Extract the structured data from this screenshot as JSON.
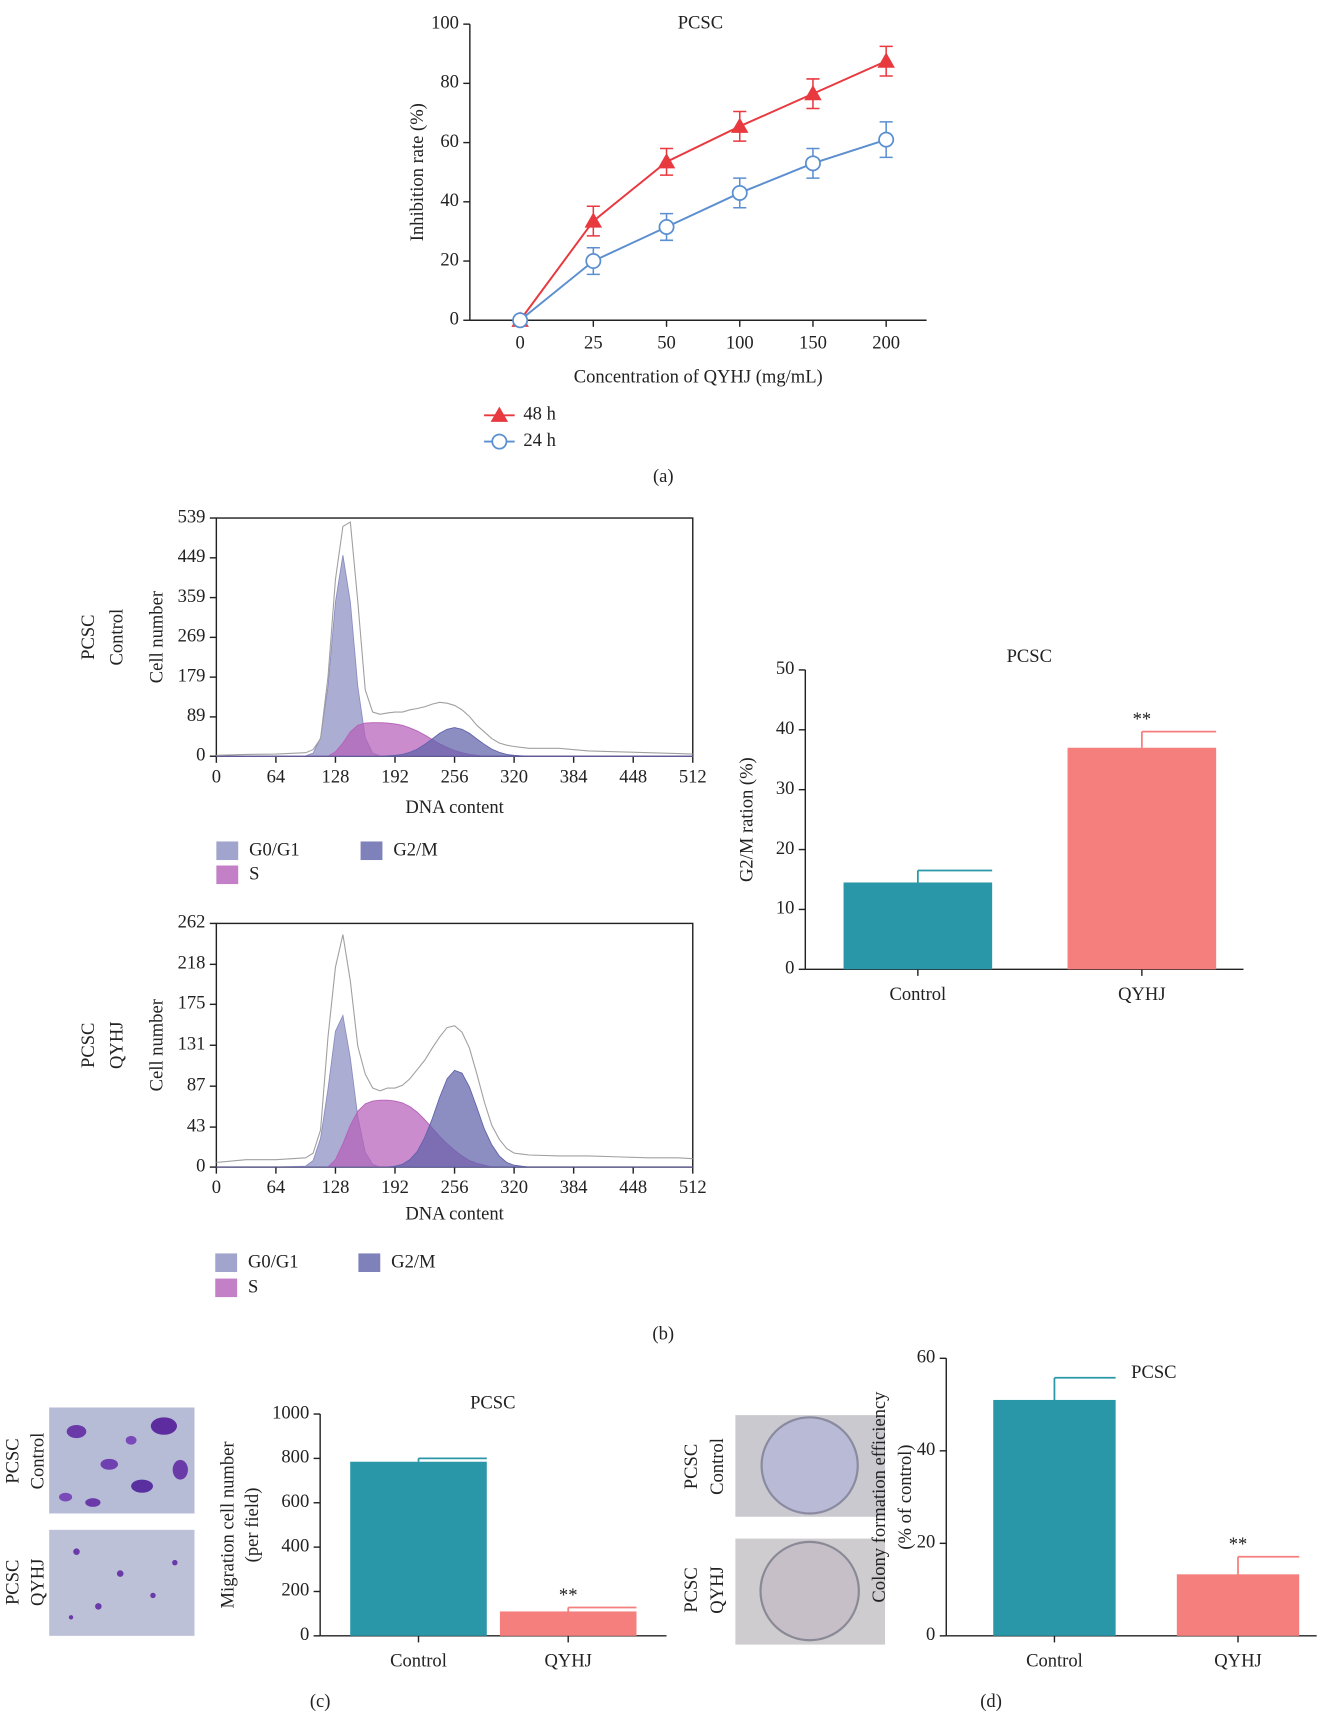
{
  "chart_data": [
    {
      "type": "line",
      "title": "PCSC",
      "x_label": "Concentration of QYHJ (mg/mL)",
      "y_label": "Inhibition rate (%)",
      "caption": "(a)",
      "categories": [
        "0",
        "25",
        "50",
        "100",
        "150",
        "200"
      ],
      "ylim": [
        0,
        100
      ],
      "yticks": [
        0,
        20,
        40,
        60,
        80,
        100
      ],
      "series": [
        {
          "name": "48 h",
          "color": "#e8393f",
          "marker": "triangle",
          "values": [
            0,
            33.5,
            53.5,
            65.5,
            76.5,
            87.5
          ],
          "errors": [
            0,
            5,
            4.5,
            5,
            5,
            5
          ]
        },
        {
          "name": "24 h",
          "color": "#5b8fd0",
          "marker": "open-circle",
          "values": [
            0,
            20,
            31.5,
            43,
            53,
            61
          ],
          "errors": [
            0,
            4.5,
            4.5,
            5,
            5,
            6
          ]
        }
      ]
    },
    {
      "type": "area",
      "side_label": [
        "PCSC",
        "Control"
      ],
      "x_label": "DNA content",
      "y_label": "Cell number",
      "xlim": [
        0,
        512
      ],
      "xticks": [
        0,
        64,
        128,
        192,
        256,
        320,
        384,
        448,
        512
      ],
      "ylim": [
        0,
        539
      ],
      "yticks": [
        0,
        89,
        179,
        269,
        359,
        449,
        539
      ],
      "x": [
        0,
        32,
        64,
        96,
        104,
        112,
        120,
        128,
        136,
        144,
        152,
        160,
        168,
        176,
        184,
        192,
        200,
        208,
        216,
        224,
        232,
        240,
        248,
        256,
        264,
        272,
        280,
        288,
        296,
        304,
        312,
        320,
        328,
        336,
        368,
        400,
        432,
        464,
        496,
        512
      ],
      "series": [
        {
          "name": "G0/G1",
          "color": "#8a8dc0",
          "values": [
            0,
            0,
            0,
            1,
            7,
            42,
            158,
            349,
            455,
            349,
            158,
            42,
            7,
            1,
            0,
            0,
            0,
            0,
            0,
            0,
            0,
            0,
            0,
            0,
            0,
            0,
            0,
            0,
            0,
            0,
            0,
            0,
            0,
            0,
            0,
            0,
            0,
            0,
            0,
            0
          ]
        },
        {
          "name": "S",
          "color": "#b560b8",
          "values": [
            0,
            0,
            0,
            0,
            0,
            0,
            0,
            10,
            30,
            55,
            70,
            75,
            76,
            76,
            75,
            73,
            70,
            64,
            57,
            48,
            38,
            28,
            20,
            13,
            8,
            4,
            2,
            0,
            0,
            0,
            0,
            0,
            0,
            0,
            0,
            0,
            0,
            0,
            0,
            0
          ]
        },
        {
          "name": "G2/M",
          "color": "#5f62aa",
          "values": [
            0,
            0,
            0,
            0,
            0,
            0,
            0,
            0,
            0,
            0,
            0,
            0,
            0,
            0,
            1,
            2,
            4,
            9,
            16,
            27,
            39,
            52,
            61,
            65,
            61,
            52,
            39,
            27,
            16,
            9,
            4,
            2,
            1,
            0,
            0,
            0,
            0,
            0,
            0,
            0
          ]
        },
        {
          "color": "#a0a0a0",
          "values": [
            2,
            4,
            5,
            8,
            15,
            40,
            180,
            400,
            520,
            530,
            350,
            150,
            100,
            95,
            98,
            100,
            100,
            105,
            108,
            112,
            118,
            122,
            120,
            115,
            105,
            90,
            70,
            55,
            40,
            30,
            25,
            22,
            20,
            18,
            18,
            12,
            10,
            8,
            6,
            5
          ]
        }
      ]
    },
    {
      "type": "area",
      "side_label": [
        "PCSC",
        "QYHJ"
      ],
      "x_label": "DNA content",
      "y_label": "Cell number",
      "xlim": [
        0,
        512
      ],
      "xticks": [
        0,
        64,
        128,
        192,
        256,
        320,
        384,
        448,
        512
      ],
      "ylim": [
        0,
        262
      ],
      "yticks": [
        0,
        43,
        87,
        131,
        175,
        218,
        262
      ],
      "x": [
        0,
        32,
        64,
        96,
        104,
        112,
        120,
        128,
        136,
        144,
        152,
        160,
        168,
        176,
        184,
        192,
        200,
        208,
        216,
        224,
        232,
        240,
        248,
        256,
        264,
        272,
        280,
        288,
        296,
        304,
        312,
        320,
        328,
        336,
        368,
        400,
        432,
        464,
        496,
        512
      ],
      "series": [
        {
          "name": "G0/G1",
          "color": "#8a8dc0",
          "values": [
            0,
            0,
            0,
            1,
            7,
            31,
            84,
            146,
            163,
            117,
            54,
            16,
            3,
            0,
            0,
            0,
            0,
            0,
            0,
            0,
            0,
            0,
            0,
            0,
            0,
            0,
            0,
            0,
            0,
            0,
            0,
            0,
            0,
            0,
            0,
            0,
            0,
            0,
            0,
            0
          ]
        },
        {
          "name": "S",
          "color": "#b560b8",
          "values": [
            0,
            0,
            0,
            0,
            0,
            0,
            0,
            8,
            25,
            45,
            60,
            68,
            71,
            72,
            72,
            71,
            69,
            65,
            59,
            51,
            42,
            33,
            25,
            18,
            12,
            7,
            4,
            2,
            0,
            0,
            0,
            0,
            0,
            0,
            0,
            0,
            0,
            0,
            0,
            0
          ]
        },
        {
          "name": "G2/M",
          "color": "#5f62aa",
          "values": [
            0,
            0,
            0,
            0,
            0,
            0,
            0,
            0,
            0,
            0,
            0,
            0,
            0,
            0,
            0,
            1,
            3,
            8,
            17,
            32,
            52,
            75,
            95,
            104,
            101,
            86,
            64,
            41,
            24,
            12,
            5,
            2,
            1,
            0,
            0,
            0,
            0,
            0,
            0,
            0
          ]
        },
        {
          "color": "#a0a0a0",
          "values": [
            5,
            8,
            8,
            10,
            15,
            40,
            140,
            215,
            250,
            200,
            130,
            100,
            85,
            82,
            85,
            85,
            88,
            95,
            105,
            115,
            128,
            140,
            150,
            152,
            145,
            128,
            100,
            70,
            45,
            30,
            20,
            15,
            14,
            13,
            12,
            12,
            11,
            10,
            10,
            9
          ]
        }
      ]
    },
    {
      "type": "bar",
      "title": "PCSC",
      "y_label": [
        "G2/M ration (%)"
      ],
      "caption": "(b)",
      "categories": [
        "Control",
        "QYHJ"
      ],
      "values": [
        14.5,
        37
      ],
      "errors": [
        2,
        2.7
      ],
      "annotations": [
        null,
        "**"
      ],
      "colors": [
        "#2a97a8",
        "#f47f7c"
      ],
      "ylim": [
        0,
        50
      ],
      "yticks": [
        0,
        10,
        20,
        30,
        40,
        50
      ]
    },
    {
      "type": "bar",
      "title": "PCSC",
      "y_label": [
        "Migration cell number",
        "(per field)"
      ],
      "caption": "(c)",
      "image_labels": [
        [
          "PCSC",
          "Control"
        ],
        [
          "PCSC",
          "QYHJ"
        ]
      ],
      "categories": [
        "Control",
        "QYHJ"
      ],
      "values": [
        785,
        110
      ],
      "errors": [
        15,
        18
      ],
      "annotations": [
        null,
        "**"
      ],
      "colors": [
        "#2a97a8",
        "#f47f7c"
      ],
      "ylim": [
        0,
        1000
      ],
      "yticks": [
        0,
        200,
        400,
        600,
        800,
        1000
      ]
    },
    {
      "type": "bar",
      "title": "PCSC",
      "y_label": [
        "Colony formation efficiency",
        "(% of control)"
      ],
      "caption": "(d)",
      "image_labels": [
        [
          "PCSC",
          "Control"
        ],
        [
          "PCSC",
          "QYHJ"
        ]
      ],
      "categories": [
        "Control",
        "QYHJ"
      ],
      "values": [
        51,
        13.3
      ],
      "errors": [
        4.8,
        3.8
      ],
      "annotations": [
        null,
        "**"
      ],
      "colors": [
        "#2a97a8",
        "#f47f7c"
      ],
      "ylim": [
        0,
        60
      ],
      "yticks": [
        0,
        20,
        40,
        60
      ]
    }
  ]
}
